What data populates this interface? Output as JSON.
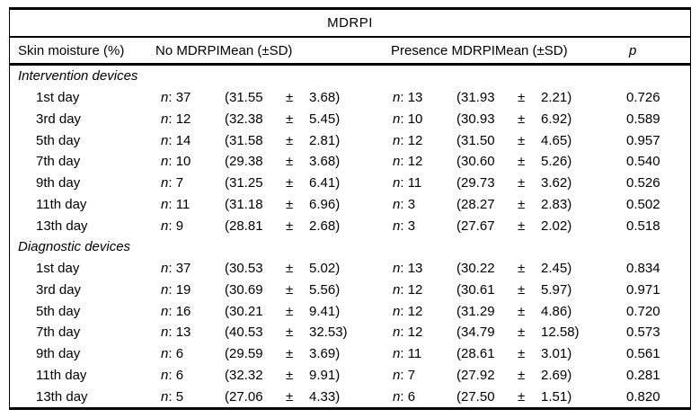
{
  "table": {
    "title": "MDRPI",
    "columns": {
      "skin_moisture": "Skin moisture (%)",
      "no_mdrpi": "No MDRPIMean (±SD)",
      "presence_mdrpi": "Presence MDRPIMean (±SD)",
      "p": "p"
    },
    "n_label": "n",
    "n_sep": ": ",
    "pm": "±",
    "sections": [
      {
        "label": "Intervention devices",
        "rows": [
          {
            "day": "1st day",
            "n1": "37",
            "mean1": "(31.55",
            "sd1": "3.68)",
            "n2": "13",
            "mean2": "(31.93",
            "sd2": "2.21)",
            "p": "0.726"
          },
          {
            "day": "3rd day",
            "n1": "12",
            "mean1": "(32.38",
            "sd1": "5.45)",
            "n2": "10",
            "mean2": "(30.93",
            "sd2": "6.92)",
            "p": "0.589"
          },
          {
            "day": "5th day",
            "n1": "14",
            "mean1": "(31.58",
            "sd1": "2.81)",
            "n2": "12",
            "mean2": "(31.50",
            "sd2": "4.65)",
            "p": "0.957"
          },
          {
            "day": "7th day",
            "n1": "10",
            "mean1": "(29.38",
            "sd1": "3.68)",
            "n2": "12",
            "mean2": "(30.60",
            "sd2": "5.26)",
            "p": "0.540"
          },
          {
            "day": "9th day",
            "n1": "7",
            "mean1": "(31.25",
            "sd1": "6.41)",
            "n2": "11",
            "mean2": "(29.73",
            "sd2": "3.62)",
            "p": "0.526"
          },
          {
            "day": "11th day",
            "n1": "11",
            "mean1": "(31.18",
            "sd1": "6.96)",
            "n2": "3",
            "mean2": "(28.27",
            "sd2": "2.83)",
            "p": "0.502"
          },
          {
            "day": "13th day",
            "n1": "9",
            "mean1": "(28.81",
            "sd1": "2.68)",
            "n2": "3",
            "mean2": "(27.67",
            "sd2": "2.02)",
            "p": "0.518"
          }
        ]
      },
      {
        "label": "Diagnostic devices",
        "rows": [
          {
            "day": "1st day",
            "n1": "37",
            "mean1": "(30.53",
            "sd1": "5.02)",
            "n2": "13",
            "mean2": "(30.22",
            "sd2": "2.45)",
            "p": "0.834"
          },
          {
            "day": "3rd day",
            "n1": "19",
            "mean1": "(30.69",
            "sd1": "5.56)",
            "n2": "12",
            "mean2": "(30.61",
            "sd2": "5.97)",
            "p": "0.971"
          },
          {
            "day": "5th day",
            "n1": "16",
            "mean1": "(30.21",
            "sd1": "9.41)",
            "n2": "12",
            "mean2": "(31.29",
            "sd2": "4.86)",
            "p": "0.720"
          },
          {
            "day": "7th day",
            "n1": "13",
            "mean1": "(40.53",
            "sd1": "32.53)",
            "n2": "12",
            "mean2": "(34.79",
            "sd2": "12.58)",
            "p": "0.573"
          },
          {
            "day": "9th day",
            "n1": "6",
            "mean1": "(29.59",
            "sd1": "3.69)",
            "n2": "11",
            "mean2": "(28.61",
            "sd2": "3.01)",
            "p": "0.561"
          },
          {
            "day": "11th day",
            "n1": "6",
            "mean1": "(32.32",
            "sd1": "9.91)",
            "n2": "7",
            "mean2": "(27.92",
            "sd2": "2.69)",
            "p": "0.281"
          },
          {
            "day": "13th day",
            "n1": "5",
            "mean1": "(27.06",
            "sd1": "4.33)",
            "n2": "6",
            "mean2": "(27.50",
            "sd2": "1.51)",
            "p": "0.820"
          }
        ]
      }
    ]
  }
}
